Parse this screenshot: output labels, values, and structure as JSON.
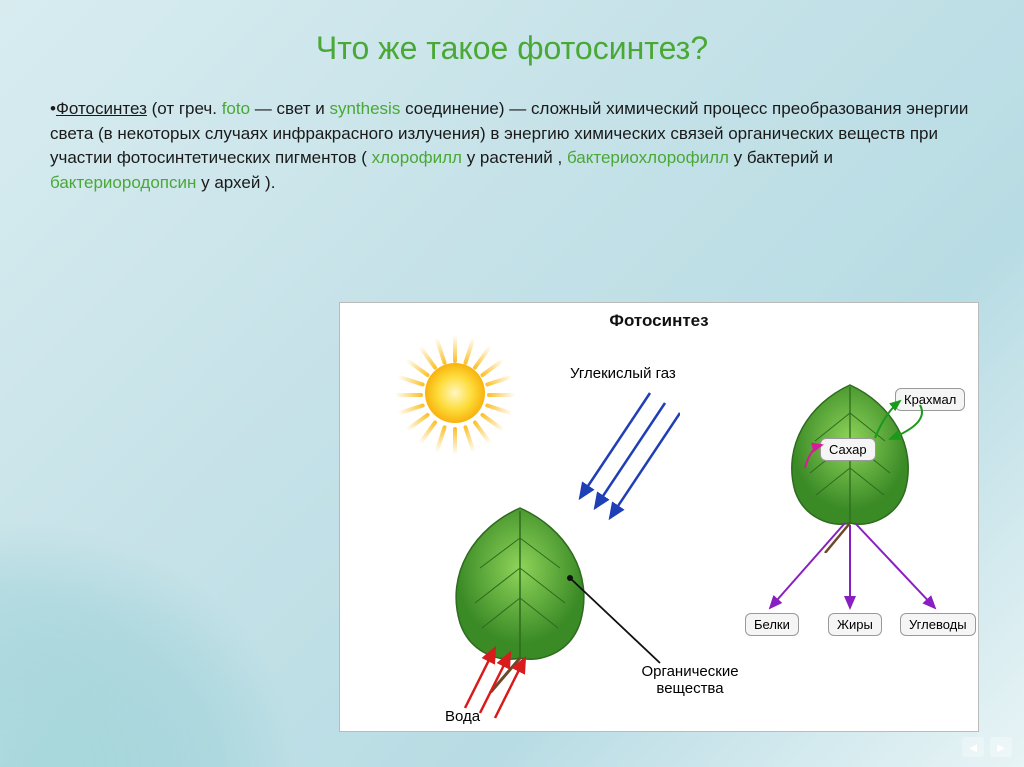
{
  "title": {
    "text": "Что же такое фотосинтез?",
    "color": "#4aa836",
    "fontsize": 32
  },
  "definition": {
    "term": "Фотосинтез",
    "greek_foto": "foto",
    "greek_light": " — свет и ",
    "greek_synthesis": "synthesis",
    "greek_syn_tail": "  соединение) — сложный химический процесс преобразования энергии света (в некоторых случаях инфракрасного излучения) в энергию химических связей органических веществ при участии фотосинтетических пигментов ( ",
    "term_chlor": "хлорофилл",
    "tail_chlor": " у растений , ",
    "term_bactchlor": "бактериохлорофилл",
    "tail_bactchlor": " у бактерий и ",
    "term_bactrod": "бактериородопсин",
    "tail_bactrod": " у архей ).",
    "greek_prefix": " (от греч. ",
    "highlight_color": "#4aa836",
    "text_color": "#1a1a1a"
  },
  "diagram": {
    "title": "Фотосинтез",
    "labels": {
      "co2": "Углекислый газ",
      "water": "Вода",
      "organic": "Органические вещества",
      "starch": "Крахмал",
      "sugar": "Сахар",
      "proteins": "Белки",
      "fats": "Жиры",
      "carbs": "Углеводы"
    },
    "colors": {
      "co2_arrow": "#1e3fb5",
      "water_arrow": "#d81b1b",
      "organic_line": "#111111",
      "sugar_arrow": "#d81b9a",
      "output_arrow": "#8a1fc1",
      "sugar_to_starch": "#1a9a1a",
      "leaf_fill": "#4aa836",
      "leaf_stroke": "#2e6b1e",
      "sun_core": "#f7a600",
      "box_bg": "#f5f5f5"
    },
    "leaf1_veins": 7,
    "leaf2_veins": 7,
    "sun_ray_count": 20
  },
  "pager": {
    "prev": "◄",
    "next": "►"
  }
}
